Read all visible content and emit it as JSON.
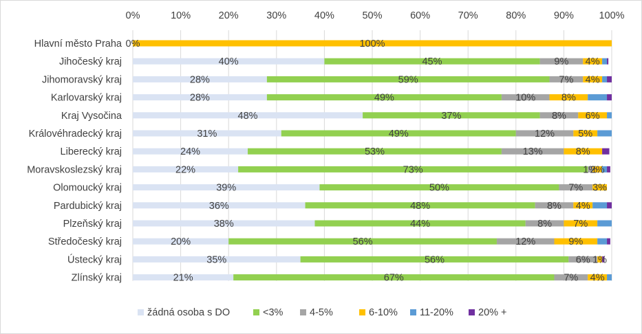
{
  "chart_data": {
    "type": "bar",
    "orientation": "horizontal",
    "stacked": "percent",
    "categories": [
      "Hlavní město Praha",
      "Jihočeský kraj",
      "Jihomoravský kraj",
      "Karlovarský kraj",
      "Kraj Vysočina",
      "Královéhradecký kraj",
      "Liberecký kraj",
      "Moravskoslezský kraj",
      "Olomoucký kraj",
      "Pardubický kraj",
      "Plzeňský kraj",
      "Středočeský kraj",
      "Ústecký kraj",
      "Zlínský kraj"
    ],
    "x_ticks": [
      "0%",
      "10%",
      "20%",
      "30%",
      "40%",
      "50%",
      "60%",
      "70%",
      "80%",
      "90%",
      "100%"
    ],
    "xlim": [
      0,
      100
    ],
    "grid": true,
    "legend_position": "bottom",
    "series": [
      {
        "name": "žádná osoba s DO",
        "color": "#dae3f3",
        "values": [
          0,
          40,
          28,
          28,
          48,
          31,
          24,
          22,
          39,
          36,
          38,
          20,
          35,
          21
        ],
        "labels": [
          "0%",
          "40%",
          "28%",
          "28%",
          "48%",
          "31%",
          "24%",
          "22%",
          "39%",
          "36%",
          "38%",
          "20%",
          "35%",
          "21%"
        ]
      },
      {
        "name": "<3%",
        "color": "#92d050",
        "values": [
          0,
          45,
          59,
          49,
          37,
          49,
          53,
          73,
          50,
          48,
          44,
          56,
          56,
          67
        ],
        "labels": [
          "",
          "45%",
          "59%",
          "49%",
          "37%",
          "49%",
          "53%",
          "73%",
          "50%",
          "48%",
          "44%",
          "56%",
          "56%",
          "67%"
        ]
      },
      {
        "name": "4-5%",
        "color": "#a5a5a5",
        "values": [
          0,
          9,
          7,
          10,
          8,
          12,
          13,
          1,
          7,
          8,
          8,
          12,
          6,
          7
        ],
        "labels": [
          "",
          "9%",
          "7%",
          "10%",
          "8%",
          "12%",
          "13%",
          "1%",
          "7%",
          "8%",
          "8%",
          "12%",
          "6%",
          "7%"
        ]
      },
      {
        "name": "6-10%",
        "color": "#ffc000",
        "values": [
          100,
          4,
          4,
          8,
          6,
          5,
          8,
          2,
          3,
          4,
          7,
          9,
          1,
          4
        ],
        "labels": [
          "100%",
          "4%",
          "4%",
          "8%",
          "6%",
          "5%",
          "8%",
          "2%",
          "3%",
          "4%",
          "7%",
          "9%",
          "1%",
          "4%"
        ]
      },
      {
        "name": "11-20%",
        "color": "#5b9bd5",
        "values": [
          0,
          1,
          1,
          4,
          1,
          3,
          0,
          1,
          0,
          3,
          3,
          2,
          0,
          1
        ],
        "labels": [
          "",
          "",
          "",
          "",
          "",
          "",
          "",
          "",
          "",
          "",
          "",
          "",
          "",
          ""
        ]
      },
      {
        "name": "20% +",
        "color": "#7030a0",
        "values": [
          0,
          0.3,
          1,
          1,
          0.3,
          0,
          1.5,
          0.7,
          0,
          1.5,
          0.3,
          0.7,
          0.5,
          0
        ],
        "labels": [
          "",
          "",
          "",
          "",
          "",
          "",
          "",
          "",
          "",
          "",
          "",
          "",
          "",
          ""
        ]
      }
    ]
  }
}
